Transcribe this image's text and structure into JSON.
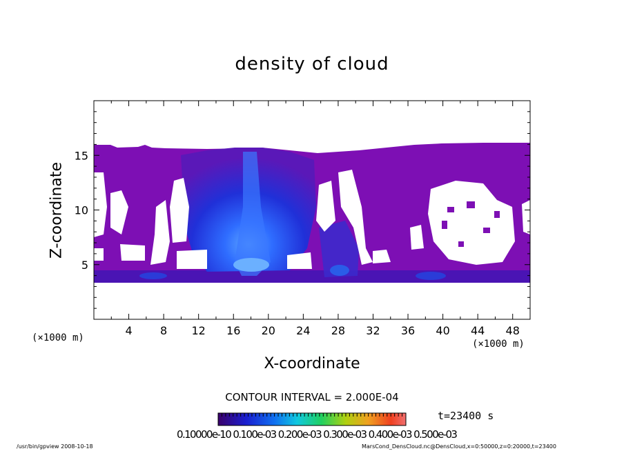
{
  "chart_data": {
    "type": "heatmap",
    "title": "density of cloud",
    "xlabel": "X-coordinate",
    "ylabel": "Z-coordinate",
    "x_unit_left": "(×1000 m)",
    "x_unit_right": "(×1000 m)",
    "xlim": [
      0,
      50
    ],
    "ylim": [
      0,
      20
    ],
    "x_ticks": [
      4,
      8,
      12,
      16,
      20,
      24,
      28,
      32,
      36,
      40,
      44,
      48
    ],
    "y_ticks": [
      5,
      10,
      15
    ],
    "contour_interval": "CONTOUR INTERVAL = 2.000E-04",
    "time_label": "t=23400 s",
    "colorbar_labels": "0.10000e-10 0.100e-03 0.200e-03 0.300e-03 0.400e-03 0.500e-03",
    "colorbar_colors": [
      "#3a006a",
      "#2a0898",
      "#1a1fd0",
      "#1060f0",
      "#10a8f0",
      "#10d0c0",
      "#20d060",
      "#60d020",
      "#b0d010",
      "#e8c020",
      "#f08020",
      "#f04020",
      "#f07070"
    ],
    "colors": {
      "background": "#7d0fb4",
      "core": "#2a5cff",
      "core_bright": "#5b9aff",
      "mid": "#1e32d8",
      "deep": "#3a1ac8"
    }
  },
  "footer": {
    "left": "/usr/bin/gpview   2008-10-18",
    "right": "MarsCond_DensCloud.nc@DensCloud,x=0:50000,z=0:20000,t=23400"
  }
}
